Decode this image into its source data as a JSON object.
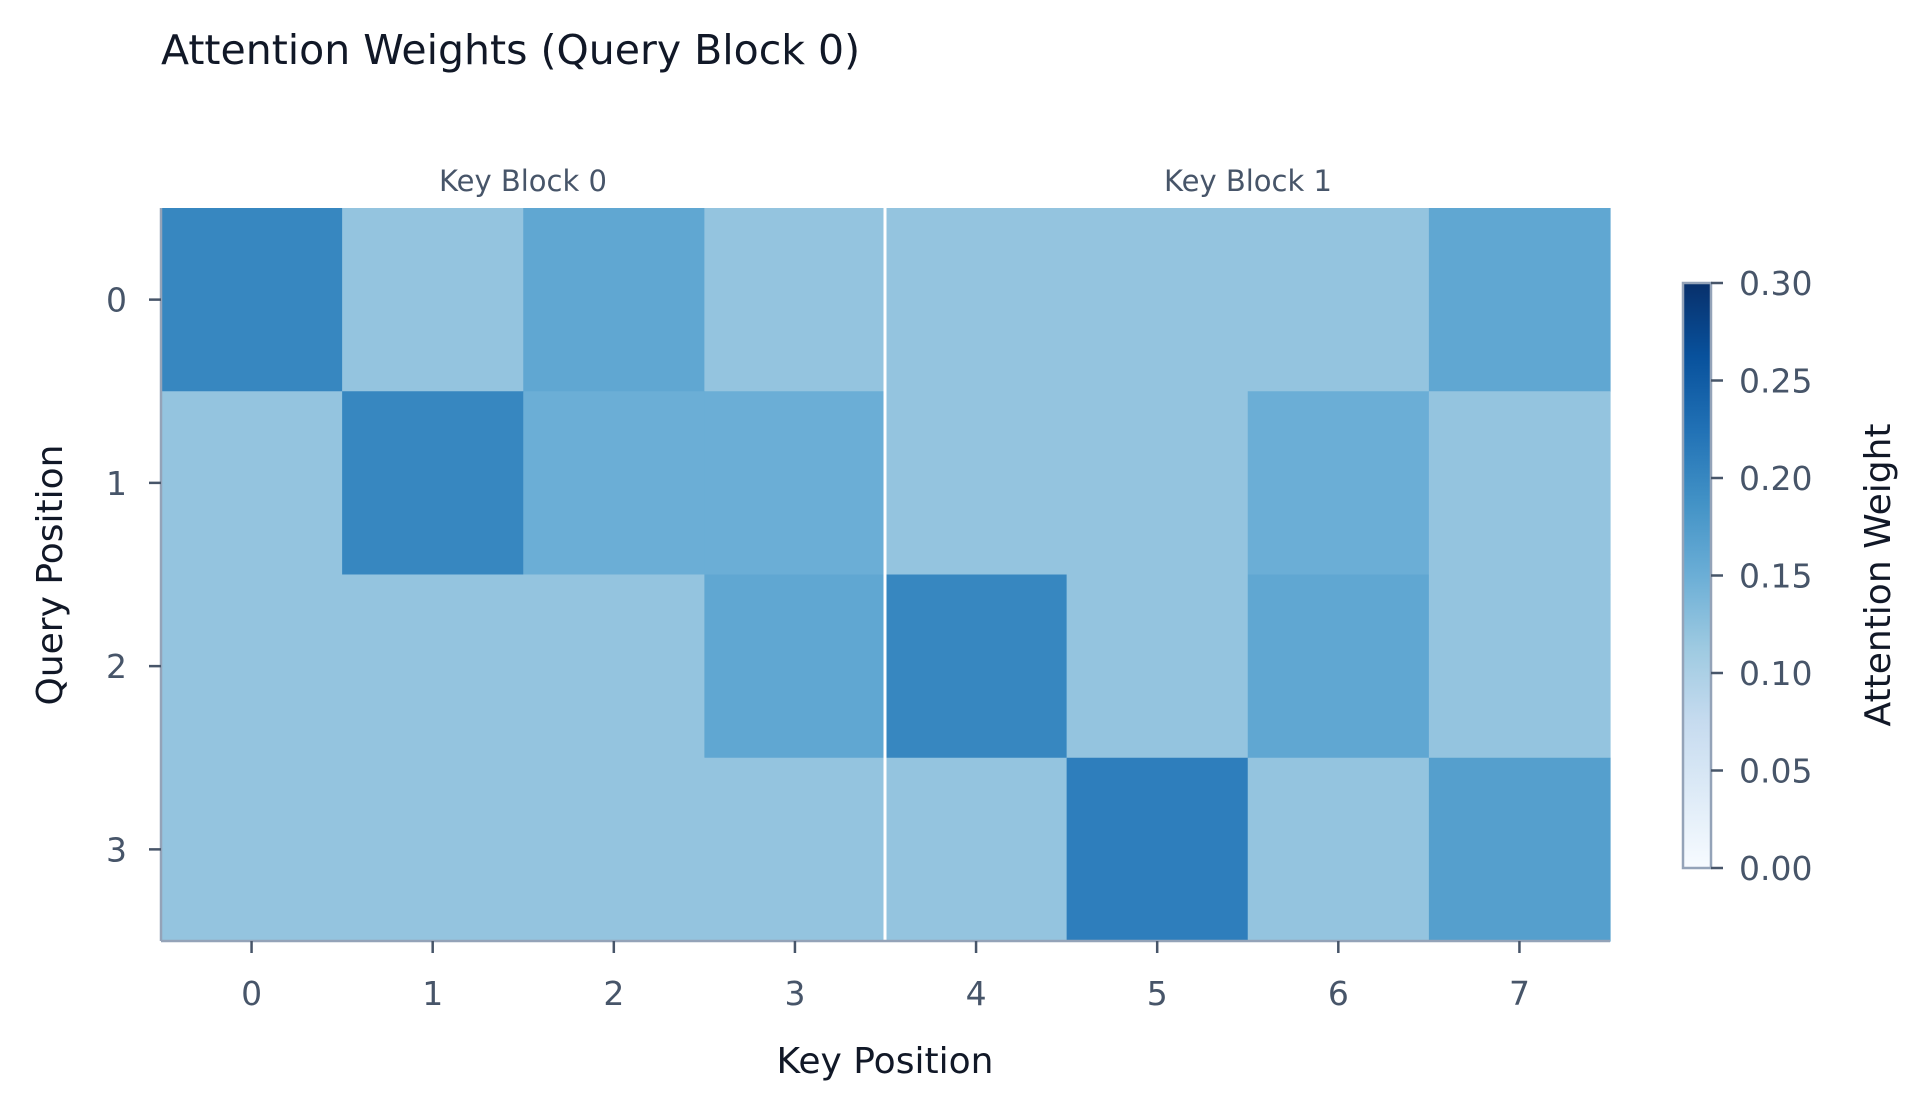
{
  "chart_data": {
    "type": "heatmap",
    "title": "Attention Weights (Query Block 0)",
    "xlabel": "Key Position",
    "ylabel": "Query Position",
    "x_ticks": [
      "0",
      "1",
      "2",
      "3",
      "4",
      "5",
      "6",
      "7"
    ],
    "y_ticks": [
      "0",
      "1",
      "2",
      "3"
    ],
    "key_blocks": [
      "Key Block 0",
      "Key Block 1"
    ],
    "values": [
      [
        0.2,
        0.12,
        0.16,
        0.12,
        0.12,
        0.12,
        0.12,
        0.16
      ],
      [
        0.12,
        0.2,
        0.15,
        0.15,
        0.12,
        0.12,
        0.15,
        0.12
      ],
      [
        0.12,
        0.12,
        0.12,
        0.16,
        0.2,
        0.12,
        0.16,
        0.12
      ],
      [
        0.12,
        0.12,
        0.12,
        0.12,
        0.12,
        0.21,
        0.12,
        0.17
      ]
    ],
    "colorbar": {
      "label": "Attention Weight",
      "range": [
        0.0,
        0.3
      ],
      "ticks": [
        "0.00",
        "0.05",
        "0.10",
        "0.15",
        "0.20",
        "0.25",
        "0.30"
      ],
      "colormap": "Blues"
    },
    "grid": false
  }
}
